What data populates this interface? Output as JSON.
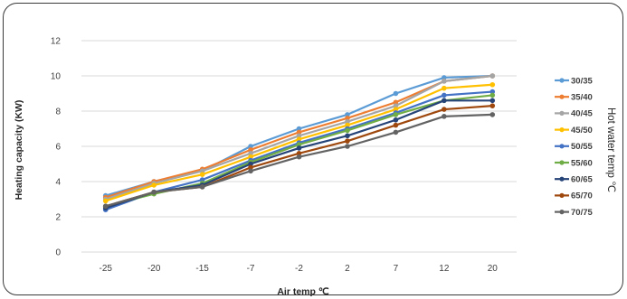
{
  "chart_data": {
    "type": "line",
    "title": "",
    "xlabel": "Air temp ℃",
    "ylabel": "Heating capacity (KW)",
    "legend_title": "Hot water temp ℃",
    "legend_position": "right",
    "grid": true,
    "ylim": [
      0,
      12
    ],
    "yticks": [
      "0",
      "2",
      "4",
      "6",
      "8",
      "10",
      "12"
    ],
    "categories": [
      "-25",
      "-20",
      "-15",
      "-7",
      "-2",
      "2",
      "7",
      "12",
      "20"
    ],
    "series": [
      {
        "name": "30/35",
        "color": "#5b9bd5",
        "values": [
          3.2,
          4.0,
          4.6,
          6.0,
          7.0,
          7.8,
          9.0,
          9.9,
          10.0
        ]
      },
      {
        "name": "35/40",
        "color": "#ed7d31",
        "values": [
          3.1,
          4.0,
          4.7,
          5.8,
          6.8,
          7.6,
          8.5,
          9.7,
          10.0
        ]
      },
      {
        "name": "40/45",
        "color": "#a5a5a5",
        "values": [
          3.0,
          3.9,
          4.6,
          5.6,
          6.6,
          7.4,
          8.3,
          9.7,
          10.0
        ]
      },
      {
        "name": "45/50",
        "color": "#ffc000",
        "values": [
          2.9,
          3.8,
          4.4,
          5.4,
          6.4,
          7.2,
          8.1,
          9.3,
          9.5
        ]
      },
      {
        "name": "50/55",
        "color": "#4472c4",
        "values": [
          2.4,
          3.4,
          4.1,
          5.2,
          6.2,
          7.0,
          7.9,
          8.9,
          9.1
        ]
      },
      {
        "name": "55/60",
        "color": "#70ad47",
        "values": [
          2.6,
          3.3,
          3.9,
          5.1,
          6.1,
          6.9,
          7.8,
          8.6,
          8.9
        ]
      },
      {
        "name": "60/65",
        "color": "#264478",
        "values": [
          2.5,
          3.4,
          3.8,
          5.0,
          5.9,
          6.6,
          7.5,
          8.6,
          8.6
        ]
      },
      {
        "name": "65/70",
        "color": "#9e480e",
        "values": [
          2.6,
          3.4,
          3.7,
          4.8,
          5.6,
          6.3,
          7.2,
          8.1,
          8.3
        ]
      },
      {
        "name": "70/75",
        "color": "#636363",
        "values": [
          2.6,
          3.4,
          3.7,
          4.6,
          5.4,
          6.0,
          6.8,
          7.7,
          7.8
        ]
      }
    ]
  }
}
